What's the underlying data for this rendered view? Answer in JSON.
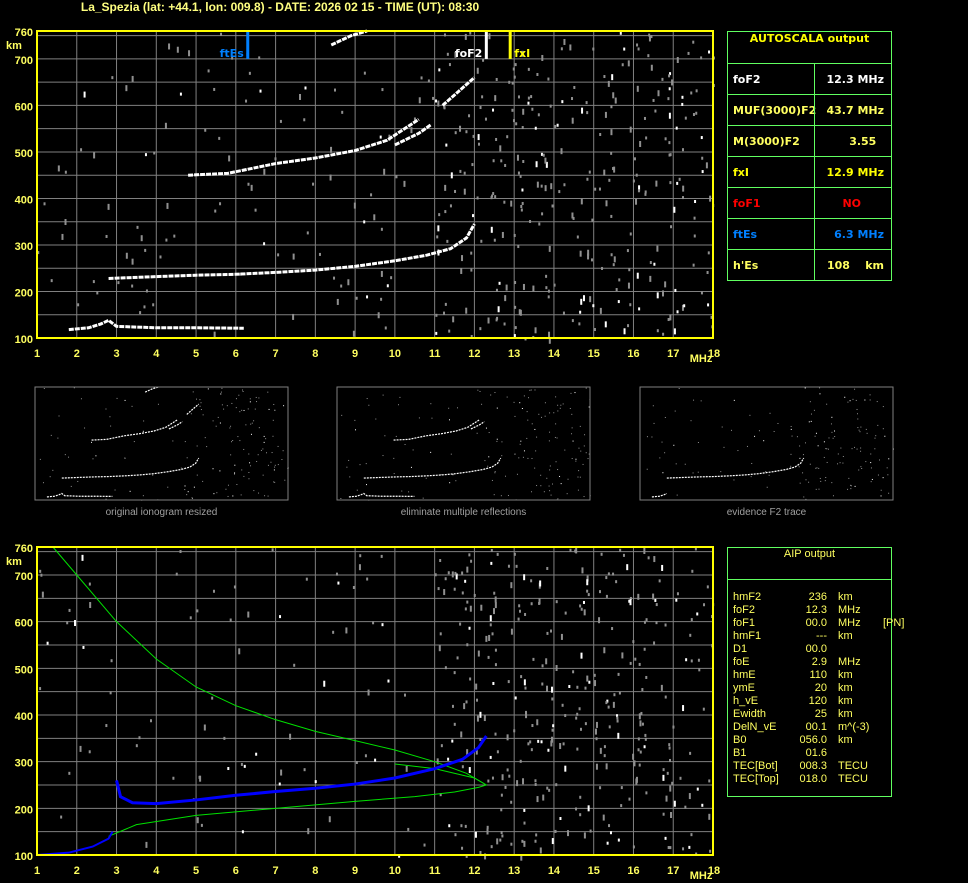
{
  "header": {
    "title": "La_Spezia (lat: +44.1, lon: 009.8) - DATE: 2026 02 15 - TIME (UT): 08:30"
  },
  "colors": {
    "axis": "#ffff00",
    "grid": "#808080",
    "ftEs": "#0080ff",
    "foF2": "#ffffff",
    "fxI": "#ffff00",
    "model": "#00e000",
    "profile": "#0000ff",
    "panel_border": "#60ff60"
  },
  "autoscala": {
    "title": "AUTOSCALA output",
    "rows": [
      {
        "key": "foF2",
        "value": "12.3 MHz",
        "color": "#ffffff"
      },
      {
        "key": "MUF(3000)F2",
        "value": "43.7 MHz",
        "color": "#ffff60"
      },
      {
        "key": "M(3000)F2",
        "value": "3.55  ",
        "color": "#ffff60"
      },
      {
        "key": "fxI",
        "value": "12.9 MHz",
        "color": "#ffff00"
      },
      {
        "key": "foF1",
        "value": "NO      ",
        "color": "#ff0000"
      },
      {
        "key": "ftEs",
        "value": "6.3 MHz",
        "color": "#0080ff"
      },
      {
        "key": "h'Es",
        "value": "108    km",
        "color": "#ffff60"
      }
    ]
  },
  "aip": {
    "title": "AIP output",
    "rows": [
      [
        "hmF2",
        "236",
        "km",
        ""
      ],
      [
        "foF2",
        "12.3",
        "MHz",
        ""
      ],
      [
        "foF1",
        "00.0",
        "MHz",
        "[PN]"
      ],
      [
        "hmF1",
        "---",
        "km",
        ""
      ],
      [
        "D1",
        "00.0",
        "",
        ""
      ],
      [
        "foE",
        "2.9",
        "MHz",
        ""
      ],
      [
        "hmE",
        "110",
        "km",
        ""
      ],
      [
        "ymE",
        "20",
        "km",
        ""
      ],
      [
        "h_vE",
        "120",
        "km",
        ""
      ],
      [
        "Ewidth",
        "25",
        "km",
        ""
      ],
      [
        "DelN_vE",
        "00.1",
        "m^(-3)",
        ""
      ],
      [
        "B0",
        "056.0",
        "km",
        ""
      ],
      [
        "B1",
        "01.6",
        "",
        ""
      ],
      [
        "TEC[Bot]",
        "008.3",
        "TECU",
        ""
      ],
      [
        "TEC[Top]",
        "018.0",
        "TECU",
        ""
      ]
    ]
  },
  "thumbnails": [
    {
      "caption": "original ionogram resized"
    },
    {
      "caption": "eliminate multiple reflections"
    },
    {
      "caption": "evidence F2 trace"
    }
  ],
  "chart_data": [
    {
      "type": "scatter",
      "panel": "autoscala ionogram",
      "xlabel": "MHz",
      "ylabel": "km",
      "xlim": [
        1,
        18
      ],
      "ylim": [
        100,
        760
      ],
      "xticks": [
        "1",
        "2",
        "3",
        "4",
        "5",
        "6",
        "7",
        "8",
        "9",
        "10",
        "11",
        "12",
        "13",
        "14",
        "15",
        "16",
        "17",
        "18"
      ],
      "yticks": [
        "760",
        "700",
        "600",
        "500",
        "400",
        "300",
        "200",
        "100"
      ],
      "grid": true,
      "markers": [
        {
          "label": "ftEs",
          "freq": 6.3,
          "color": "#0080ff"
        },
        {
          "label": "foF2",
          "freq": 12.3,
          "color": "#ffffff"
        },
        {
          "label": "fxI",
          "freq": 12.9,
          "color": "#ffff00"
        }
      ],
      "traces": [
        {
          "kind": "E",
          "points": [
            [
              1.8,
              118
            ],
            [
              2.3,
              122
            ],
            [
              2.6,
              130
            ],
            [
              2.8,
              138
            ],
            [
              3.0,
              125
            ],
            [
              4,
              122
            ],
            [
              5,
              122
            ],
            [
              6.2,
              121
            ]
          ]
        },
        {
          "kind": "F2",
          "points": [
            [
              2.8,
              228
            ],
            [
              4,
              232
            ],
            [
              5,
              235
            ],
            [
              6,
              237
            ],
            [
              7,
              241
            ],
            [
              8,
              246
            ],
            [
              9,
              254
            ],
            [
              10,
              266
            ],
            [
              10.8,
              278
            ],
            [
              11.4,
              292
            ],
            [
              11.8,
              315
            ],
            [
              12.0,
              345
            ]
          ]
        },
        {
          "kind": "F2-2hop",
          "points": [
            [
              4.8,
              450
            ],
            [
              5.8,
              454
            ],
            [
              7,
              475
            ],
            [
              8,
              487
            ],
            [
              9,
              503
            ],
            [
              9.8,
              525
            ],
            [
              10.6,
              570
            ]
          ]
        },
        {
          "kind": "F2-2hop",
          "points": [
            [
              10.0,
              515
            ],
            [
              10.6,
              540
            ],
            [
              10.9,
              558
            ]
          ]
        },
        {
          "kind": "F2-3hop",
          "points": [
            [
              11.2,
              600
            ],
            [
              11.6,
              630
            ],
            [
              12.0,
              660
            ]
          ]
        },
        {
          "kind": "F2-3hop",
          "points": [
            [
              8.4,
              730
            ],
            [
              8.9,
              750
            ],
            [
              9.3,
              760
            ]
          ]
        }
      ]
    },
    {
      "type": "line",
      "panel": "AIP ionogram",
      "xlabel": "MHz",
      "ylabel": "km",
      "xlim": [
        1,
        18
      ],
      "ylim": [
        100,
        760
      ],
      "xticks": [
        "1",
        "2",
        "3",
        "4",
        "5",
        "6",
        "7",
        "8",
        "9",
        "10",
        "11",
        "12",
        "13",
        "14",
        "15",
        "16",
        "17",
        "18"
      ],
      "yticks": [
        "760",
        "700",
        "600",
        "500",
        "400",
        "300",
        "200",
        "100"
      ],
      "grid": true,
      "model_topside": [
        [
          1.4,
          760
        ],
        [
          2,
          700
        ],
        [
          3,
          600
        ],
        [
          4,
          520
        ],
        [
          5,
          460
        ],
        [
          6,
          420
        ],
        [
          7,
          390
        ],
        [
          8,
          365
        ],
        [
          9,
          345
        ],
        [
          10,
          325
        ],
        [
          11,
          300
        ],
        [
          11.8,
          275
        ],
        [
          12.3,
          250
        ]
      ],
      "model_profile": [
        [
          2.8,
          140
        ],
        [
          3.5,
          165
        ],
        [
          5,
          185
        ],
        [
          7,
          200
        ],
        [
          9,
          215
        ],
        [
          10.5,
          225
        ],
        [
          11.5,
          235
        ],
        [
          12.1,
          245
        ],
        [
          12.3,
          250
        ],
        [
          12.0,
          265
        ],
        [
          11,
          285
        ],
        [
          10,
          295
        ]
      ],
      "e_profile": [
        [
          1,
          100
        ],
        [
          1.8,
          105
        ],
        [
          2.4,
          118
        ],
        [
          2.8,
          135
        ],
        [
          2.9,
          150
        ]
      ],
      "f_profile": [
        [
          3.0,
          260
        ],
        [
          3.1,
          225
        ],
        [
          3.4,
          212
        ],
        [
          4,
          210
        ],
        [
          5,
          218
        ],
        [
          6,
          228
        ],
        [
          7,
          236
        ],
        [
          8,
          243
        ],
        [
          9,
          252
        ],
        [
          10,
          265
        ],
        [
          11,
          285
        ],
        [
          11.7,
          305
        ],
        [
          12.1,
          330
        ],
        [
          12.3,
          355
        ]
      ]
    }
  ]
}
